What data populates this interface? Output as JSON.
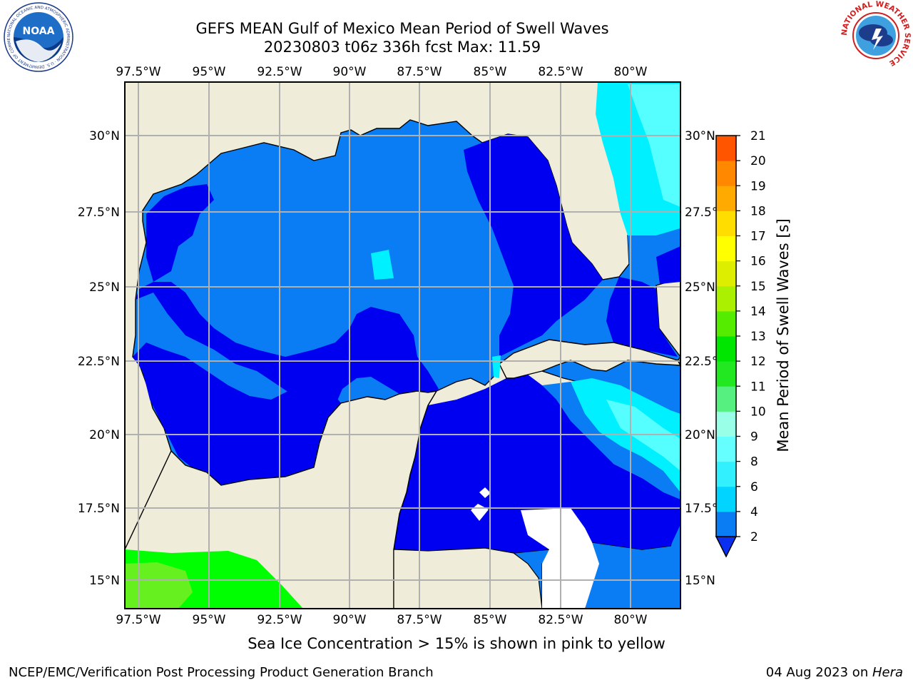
{
  "title": {
    "line1": "GEFS MEAN Gulf of Mexico Mean Period of Swell Waves",
    "line2": "20230803 t06z 336h fcst   Max: 11.59"
  },
  "map": {
    "lon_labels": [
      "97.5°W",
      "95°W",
      "92.5°W",
      "90°W",
      "87.5°W",
      "85°W",
      "82.5°W",
      "80°W"
    ],
    "lat_labels_left": [
      "30°N",
      "27.5°N",
      "25°N",
      "22.5°N",
      "20°N",
      "17.5°N",
      "15°N"
    ],
    "lat_labels_right": [
      "30°N",
      "27.5°N",
      "25°N",
      "22.5°N",
      "20°N",
      "17.5°N",
      "15°N"
    ],
    "extent": {
      "lon_min": -98,
      "lon_max": -78.3,
      "lat_min": 14,
      "lat_max": 31.5
    },
    "land_color": "#efedda",
    "grid": true
  },
  "colorbar": {
    "label": "Mean Period of Swell Waves [s]",
    "ticks": [
      "21",
      "20",
      "19",
      "18",
      "17",
      "16",
      "15",
      "14",
      "13",
      "12",
      "11",
      "10",
      "9",
      "8",
      "6",
      "4",
      "2"
    ],
    "levels": [
      2,
      4,
      6,
      8,
      9,
      10,
      11,
      12,
      13,
      14,
      15,
      16,
      17,
      18,
      19,
      20,
      21
    ],
    "colors": [
      "#0a7df5",
      "#00d4ff",
      "#33f0ff",
      "#66ffff",
      "#99ffe6",
      "#55f080",
      "#22e822",
      "#00e600",
      "#55ec00",
      "#aaf000",
      "#ddee00",
      "#ffff00",
      "#ffdd00",
      "#ffaa00",
      "#ff8800",
      "#ff5500",
      "#ff2200",
      "#ff0000"
    ],
    "extend": "min"
  },
  "field_colors": {
    "p2_4": "#0a7df5",
    "p2_low": "#0000f0",
    "p4_6": "#00f0ff",
    "p6_8": "#55ffff",
    "p9_11": "#00ff00",
    "p11_12": "#66f020"
  },
  "note": "Sea Ice Concentration > 15% is shown in pink to yellow",
  "footer": {
    "left": "NCEP/EMC/Verification Post Processing Product Generation Branch",
    "right_date": "04 Aug 2023 on ",
    "right_machine": "Hera"
  },
  "logos": {
    "noaa": "NOAA",
    "noaa_ring": "NATIONAL OCEANIC AND ATMOSPHERIC ADMINISTRATION · U.S. DEPARTMENT OF COMMERCE",
    "nws_ring": "NATIONAL WEATHER SERVICE"
  }
}
